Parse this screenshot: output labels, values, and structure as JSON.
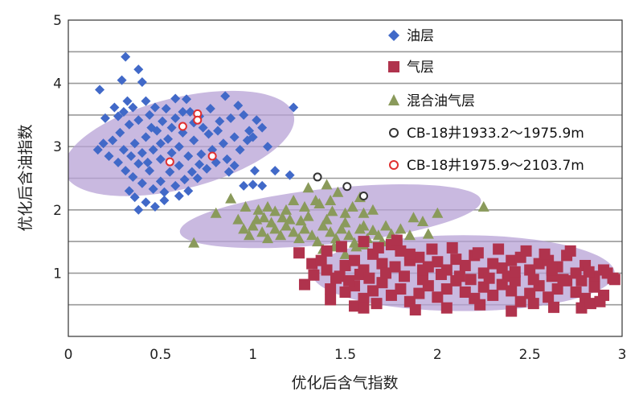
{
  "chart_data": {
    "type": "scatter",
    "title": "",
    "xlabel": "优化后含气指数",
    "ylabel": "优化后含油指数",
    "xlim": [
      0,
      3
    ],
    "ylim": [
      0,
      5
    ],
    "x_ticks": [
      "0",
      "0.5",
      "1",
      "1.5",
      "2",
      "2.5",
      "3"
    ],
    "y_ticks": [
      "1",
      "2",
      "3",
      "4",
      "5"
    ],
    "grid": "horizontal",
    "grid_lines_y": [
      0.5,
      1,
      1.5,
      2,
      2.5,
      3,
      3.5,
      4,
      4.5
    ],
    "legend_position": "top-right",
    "colors": {
      "oil": "#4169c8",
      "gas": "#b0334d",
      "mixed": "#8a9a5b",
      "well_a": "#333333",
      "well_b": "#e03030",
      "ellipse": "#b7a1d6"
    },
    "regions": [
      {
        "cx": 0.6,
        "cy": 3.05,
        "rx": 0.64,
        "ry": 0.72,
        "angle": -14
      },
      {
        "cx": 1.42,
        "cy": 1.9,
        "rx": 0.82,
        "ry": 0.44,
        "angle": -6
      },
      {
        "cx": 2.14,
        "cy": 1.0,
        "rx": 0.82,
        "ry": 0.6,
        "angle": 0
      }
    ],
    "series": [
      {
        "name": "油层",
        "marker": "diamond",
        "points": [
          [
            0.31,
            4.42
          ],
          [
            0.17,
            3.9
          ],
          [
            0.29,
            4.05
          ],
          [
            0.38,
            4.22
          ],
          [
            0.4,
            4.02
          ],
          [
            0.25,
            3.62
          ],
          [
            0.2,
            3.45
          ],
          [
            0.32,
            3.72
          ],
          [
            0.42,
            3.72
          ],
          [
            0.47,
            3.62
          ],
          [
            0.53,
            3.6
          ],
          [
            0.58,
            3.76
          ],
          [
            0.64,
            3.75
          ],
          [
            0.66,
            3.55
          ],
          [
            0.71,
            3.48
          ],
          [
            0.77,
            3.6
          ],
          [
            0.85,
            3.8
          ],
          [
            0.92,
            3.65
          ],
          [
            0.95,
            3.5
          ],
          [
            1.02,
            3.42
          ],
          [
            1.05,
            3.3
          ],
          [
            0.98,
            3.25
          ],
          [
            0.9,
            3.15
          ],
          [
            0.84,
            3.05
          ],
          [
            0.78,
            2.95
          ],
          [
            0.86,
            2.8
          ],
          [
            0.8,
            2.75
          ],
          [
            0.72,
            2.88
          ],
          [
            0.68,
            3.1
          ],
          [
            0.62,
            3.22
          ],
          [
            0.56,
            3.3
          ],
          [
            0.51,
            3.4
          ],
          [
            0.44,
            3.5
          ],
          [
            0.38,
            3.42
          ],
          [
            0.33,
            3.35
          ],
          [
            0.28,
            3.22
          ],
          [
            0.24,
            3.1
          ],
          [
            0.19,
            3.05
          ],
          [
            0.16,
            2.95
          ],
          [
            0.22,
            2.85
          ],
          [
            0.27,
            2.75
          ],
          [
            0.31,
            2.62
          ],
          [
            0.35,
            2.52
          ],
          [
            0.4,
            2.42
          ],
          [
            0.46,
            2.33
          ],
          [
            0.52,
            2.28
          ],
          [
            0.58,
            2.38
          ],
          [
            0.63,
            2.48
          ],
          [
            0.67,
            2.6
          ],
          [
            0.71,
            2.72
          ],
          [
            0.5,
            2.45
          ],
          [
            0.44,
            2.62
          ],
          [
            0.38,
            2.73
          ],
          [
            0.34,
            2.85
          ],
          [
            0.3,
            2.95
          ],
          [
            0.36,
            3.05
          ],
          [
            0.42,
            3.15
          ],
          [
            0.48,
            3.25
          ],
          [
            0.54,
            3.12
          ],
          [
            0.6,
            3.0
          ],
          [
            0.56,
            2.9
          ],
          [
            0.5,
            2.8
          ],
          [
            0.46,
            2.95
          ],
          [
            0.4,
            2.9
          ],
          [
            0.36,
            2.2
          ],
          [
            0.42,
            2.12
          ],
          [
            0.47,
            2.05
          ],
          [
            0.38,
            2.0
          ],
          [
            0.52,
            2.15
          ],
          [
            0.33,
            2.3
          ],
          [
            0.6,
            2.22
          ],
          [
            0.65,
            2.3
          ],
          [
            1.22,
            3.62
          ],
          [
            1.08,
            3.0
          ],
          [
            1.12,
            2.62
          ],
          [
            1.01,
            2.62
          ],
          [
            1.0,
            2.4
          ],
          [
            1.05,
            2.38
          ],
          [
            1.2,
            2.55
          ],
          [
            0.95,
            2.38
          ],
          [
            0.58,
            3.45
          ],
          [
            0.62,
            3.55
          ],
          [
            0.73,
            3.3
          ],
          [
            0.76,
            3.2
          ],
          [
            0.68,
            3.38
          ],
          [
            0.3,
            3.55
          ],
          [
            0.27,
            3.48
          ],
          [
            0.35,
            3.62
          ],
          [
            0.45,
            3.3
          ],
          [
            0.5,
            3.05
          ],
          [
            0.43,
            2.75
          ],
          [
            0.55,
            2.6
          ],
          [
            0.6,
            2.7
          ],
          [
            0.65,
            2.85
          ],
          [
            0.7,
            2.5
          ],
          [
            0.75,
            2.65
          ],
          [
            0.88,
            3.45
          ],
          [
            0.82,
            3.4
          ],
          [
            0.93,
            2.95
          ],
          [
            0.97,
            3.1
          ],
          [
            1.0,
            3.15
          ],
          [
            0.87,
            2.6
          ],
          [
            0.9,
            2.7
          ],
          [
            0.81,
            3.25
          ]
        ]
      },
      {
        "name": "气层",
        "marker": "square",
        "points": [
          [
            1.25,
            1.32
          ],
          [
            1.32,
            1.15
          ],
          [
            1.28,
            0.82
          ],
          [
            1.4,
            1.05
          ],
          [
            1.45,
            0.92
          ],
          [
            1.5,
            1.12
          ],
          [
            1.55,
            1.2
          ],
          [
            1.6,
            1.05
          ],
          [
            1.65,
            1.3
          ],
          [
            1.7,
            1.15
          ],
          [
            1.75,
            1.45
          ],
          [
            1.8,
            1.35
          ],
          [
            1.85,
            1.2
          ],
          [
            1.9,
            1.25
          ],
          [
            1.95,
            1.1
          ],
          [
            2.0,
            1.18
          ],
          [
            2.05,
            1.05
          ],
          [
            2.1,
            1.22
          ],
          [
            2.15,
            1.12
          ],
          [
            2.2,
            1.28
          ],
          [
            2.25,
            1.0
          ],
          [
            2.3,
            1.15
          ],
          [
            2.35,
            1.08
          ],
          [
            2.4,
            1.2
          ],
          [
            2.45,
            1.25
          ],
          [
            2.5,
            1.05
          ],
          [
            2.55,
            1.15
          ],
          [
            2.6,
            1.2
          ],
          [
            2.65,
            1.1
          ],
          [
            2.7,
            1.28
          ],
          [
            2.75,
            1.0
          ],
          [
            2.8,
            1.12
          ],
          [
            2.85,
            0.95
          ],
          [
            2.9,
            1.05
          ],
          [
            2.95,
            0.92
          ],
          [
            1.5,
            0.7
          ],
          [
            1.55,
            0.8
          ],
          [
            1.6,
            0.6
          ],
          [
            1.65,
            0.72
          ],
          [
            1.7,
            0.85
          ],
          [
            1.75,
            0.65
          ],
          [
            1.8,
            0.75
          ],
          [
            1.85,
            0.55
          ],
          [
            1.9,
            0.68
          ],
          [
            1.95,
            0.8
          ],
          [
            2.0,
            0.62
          ],
          [
            2.05,
            0.75
          ],
          [
            2.1,
            0.88
          ],
          [
            2.15,
            0.7
          ],
          [
            2.2,
            0.6
          ],
          [
            2.25,
            0.78
          ],
          [
            2.3,
            0.65
          ],
          [
            2.35,
            0.82
          ],
          [
            2.4,
            0.72
          ],
          [
            2.45,
            0.55
          ],
          [
            2.5,
            0.68
          ],
          [
            2.55,
            0.8
          ],
          [
            2.6,
            0.62
          ],
          [
            2.65,
            0.75
          ],
          [
            2.7,
            0.88
          ],
          [
            2.75,
            0.7
          ],
          [
            2.8,
            0.6
          ],
          [
            2.85,
            0.78
          ],
          [
            2.9,
            0.65
          ],
          [
            1.55,
            0.48
          ],
          [
            1.6,
            0.45
          ],
          [
            1.67,
            0.52
          ],
          [
            2.05,
            0.45
          ],
          [
            2.23,
            0.5
          ],
          [
            2.4,
            0.4
          ],
          [
            2.52,
            0.52
          ],
          [
            2.63,
            0.46
          ],
          [
            2.78,
            0.45
          ],
          [
            2.83,
            0.52
          ],
          [
            2.88,
            0.55
          ],
          [
            1.4,
            1.35
          ],
          [
            1.48,
            1.42
          ],
          [
            1.6,
            1.5
          ],
          [
            1.68,
            1.4
          ],
          [
            1.78,
            1.52
          ],
          [
            1.85,
            1.3
          ],
          [
            1.97,
            1.38
          ],
          [
            2.08,
            1.4
          ],
          [
            2.22,
            1.32
          ],
          [
            2.33,
            1.38
          ],
          [
            2.48,
            1.35
          ],
          [
            2.58,
            1.3
          ],
          [
            2.72,
            1.35
          ],
          [
            1.42,
            0.75
          ],
          [
            1.47,
            0.95
          ],
          [
            1.52,
            0.88
          ],
          [
            1.58,
            0.98
          ],
          [
            1.63,
            0.92
          ],
          [
            1.72,
            1.0
          ],
          [
            1.82,
            0.95
          ],
          [
            1.92,
            0.9
          ],
          [
            2.02,
            0.98
          ],
          [
            2.12,
            0.95
          ],
          [
            2.18,
            0.9
          ],
          [
            2.28,
            0.92
          ],
          [
            2.38,
            0.95
          ],
          [
            2.42,
            0.88
          ],
          [
            2.52,
            0.9
          ],
          [
            2.62,
            0.95
          ],
          [
            2.68,
            0.9
          ],
          [
            2.78,
            0.88
          ],
          [
            2.82,
            1.02
          ],
          [
            2.92,
            1.0
          ],
          [
            2.62,
            1.05
          ],
          [
            2.42,
            1.02
          ],
          [
            1.77,
            1.1
          ],
          [
            1.92,
            1.05
          ],
          [
            1.37,
            1.2
          ],
          [
            1.33,
            0.97
          ],
          [
            1.42,
            0.58
          ],
          [
            1.88,
            0.42
          ],
          [
            2.96,
            0.9
          ]
        ]
      },
      {
        "name": "混合油气层",
        "marker": "triangle",
        "points": [
          [
            0.68,
            1.48
          ],
          [
            0.8,
            1.95
          ],
          [
            0.88,
            2.18
          ],
          [
            0.92,
            1.85
          ],
          [
            0.95,
            1.7
          ],
          [
            0.98,
            1.6
          ],
          [
            1.0,
            1.75
          ],
          [
            1.02,
            1.85
          ],
          [
            1.05,
            1.65
          ],
          [
            1.08,
            1.55
          ],
          [
            1.1,
            1.8
          ],
          [
            1.12,
            1.7
          ],
          [
            1.15,
            1.6
          ],
          [
            1.18,
            1.75
          ],
          [
            1.2,
            1.85
          ],
          [
            1.22,
            1.65
          ],
          [
            1.25,
            1.55
          ],
          [
            1.28,
            1.7
          ],
          [
            1.3,
            1.9
          ],
          [
            1.32,
            1.6
          ],
          [
            1.35,
            1.5
          ],
          [
            1.38,
            1.75
          ],
          [
            1.4,
            1.85
          ],
          [
            1.42,
            1.65
          ],
          [
            1.45,
            1.55
          ],
          [
            1.48,
            1.7
          ],
          [
            1.5,
            1.8
          ],
          [
            1.52,
            1.6
          ],
          [
            1.55,
            1.48
          ],
          [
            1.58,
            1.7
          ],
          [
            1.6,
            1.75
          ],
          [
            1.62,
            1.55
          ],
          [
            1.65,
            1.68
          ],
          [
            1.68,
            1.6
          ],
          [
            1.72,
            1.75
          ],
          [
            1.75,
            1.62
          ],
          [
            1.8,
            1.7
          ],
          [
            1.85,
            1.6
          ],
          [
            1.3,
            2.35
          ],
          [
            1.36,
            2.1
          ],
          [
            1.4,
            2.4
          ],
          [
            1.42,
            2.15
          ],
          [
            1.46,
            2.28
          ],
          [
            1.5,
            1.95
          ],
          [
            1.54,
            2.05
          ],
          [
            1.58,
            2.2
          ],
          [
            1.6,
            1.95
          ],
          [
            1.65,
            2.0
          ],
          [
            1.34,
            2.15
          ],
          [
            1.28,
            2.05
          ],
          [
            1.22,
            2.15
          ],
          [
            1.18,
            2.0
          ],
          [
            1.12,
            1.98
          ],
          [
            1.08,
            2.05
          ],
          [
            1.03,
            2.0
          ],
          [
            1.38,
            1.38
          ],
          [
            1.44,
            1.42
          ],
          [
            1.5,
            1.3
          ],
          [
            1.56,
            1.42
          ],
          [
            1.87,
            1.88
          ],
          [
            1.92,
            1.82
          ],
          [
            2.0,
            1.95
          ],
          [
            2.25,
            2.05
          ],
          [
            1.95,
            1.62
          ],
          [
            0.96,
            2.05
          ],
          [
            1.06,
            1.88
          ],
          [
            1.16,
            1.88
          ],
          [
            1.26,
            1.83
          ],
          [
            1.43,
            1.98
          ],
          [
            1.6,
            1.45
          ],
          [
            1.7,
            1.5
          ],
          [
            1.78,
            1.45
          ]
        ]
      },
      {
        "name": "CB-18井1933.2～1975.9m",
        "marker": "circle-open",
        "points": [
          [
            1.35,
            2.52
          ],
          [
            1.51,
            2.37
          ],
          [
            1.6,
            2.22
          ]
        ]
      },
      {
        "name": "CB-18井1975.9～2103.7m",
        "marker": "circle-open",
        "points": [
          [
            0.7,
            3.52
          ],
          [
            0.7,
            3.42
          ],
          [
            0.62,
            3.32
          ],
          [
            0.78,
            2.85
          ],
          [
            0.55,
            2.76
          ]
        ]
      }
    ]
  }
}
